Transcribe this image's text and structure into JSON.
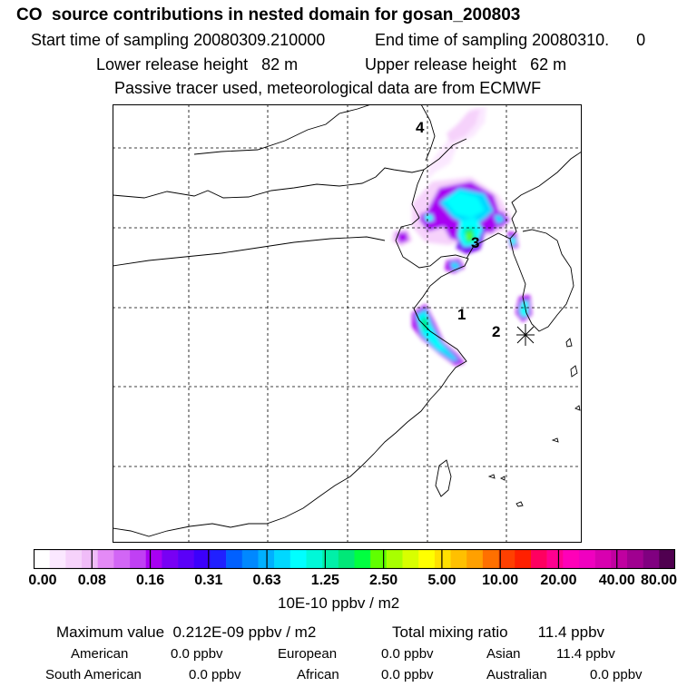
{
  "header": {
    "title": "CO  source contributions in nested domain for gosan_200803",
    "start_time": "Start time of sampling 20080309.210000",
    "end_time": "End time of sampling 20080310.      0",
    "lower_release": "Lower release height   82 m",
    "upper_release": "Upper release height   62 m",
    "tracer_note": "Passive tracer used, meteorological data are from ECMWF"
  },
  "chart_data": {
    "type": "heatmap",
    "title": "CO  source contributions in nested domain for gosan_200803",
    "variable": "CO source contribution",
    "map_labels": [
      "1",
      "2",
      "3",
      "4"
    ],
    "grid": true,
    "colorbar": {
      "unit_label": "10E-10 ppbv / m2",
      "ticks": [
        "0.00",
        "0.08",
        "0.16",
        "0.31",
        "0.63",
        "1.25",
        "2.50",
        "5.00",
        "10.00",
        "20.00",
        "40.00",
        "80.00"
      ],
      "colors": [
        "#ffffff",
        "#fbe8ff",
        "#f6d2fb",
        "#f0bcf8",
        "#e48af6",
        "#d266f5",
        "#c040f4",
        "#a800f2",
        "#7800f4",
        "#5a00f8",
        "#3c00fc",
        "#2020ff",
        "#0060ff",
        "#0088ff",
        "#00b0ff",
        "#00d8ff",
        "#00ffff",
        "#00f8d8",
        "#00f0a8",
        "#00e878",
        "#00ff40",
        "#60ff00",
        "#a8ff00",
        "#d8ff00",
        "#ffff00",
        "#ffe000",
        "#ffc000",
        "#ffa000",
        "#ff7000",
        "#ff4000",
        "#ff2000",
        "#ff0060",
        "#ff0090",
        "#ff00b8",
        "#f000c0",
        "#d800b0",
        "#c000a0",
        "#a00090",
        "#800080",
        "#500050"
      ]
    },
    "maximum_value": "0.212E-09 ppbv / m2",
    "total_mixing_ratio": "11.4 ppbv",
    "contributions": [
      {
        "region": "American",
        "value": "0.0 ppbv"
      },
      {
        "region": "European",
        "value": "0.0 ppbv"
      },
      {
        "region": "Asian",
        "value": "11.4 ppbv"
      },
      {
        "region": "South American",
        "value": "0.0 ppbv"
      },
      {
        "region": "African",
        "value": "0.0 ppbv"
      },
      {
        "region": "Australian",
        "value": "0.0 ppbv"
      }
    ]
  },
  "footer": {
    "max_label": "Maximum value  0.212E-09 ppbv / m2",
    "total_label": "Total mixing ratio       11.4 ppbv"
  },
  "colors": {
    "cyan": "#00ffff",
    "violet": "#a800f2",
    "magenta_light": "#f0bcf8",
    "green": "#00e878"
  }
}
